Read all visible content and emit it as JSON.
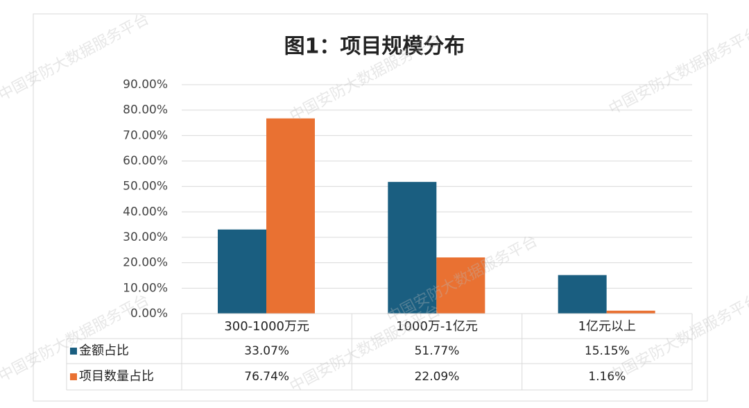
{
  "chart_data": {
    "type": "bar",
    "title": "图1：项目规模分布",
    "watermark": "中国安防大数据服务平台",
    "categories": [
      "300-1000万元",
      "1000万-1亿元",
      "1亿元以上"
    ],
    "series": [
      {
        "name": "金额占比",
        "color": "#1a5e80",
        "values": [
          33.07,
          51.77,
          15.15
        ],
        "value_labels": [
          "33.07%",
          "51.77%",
          "15.15%"
        ]
      },
      {
        "name": "项目数量占比",
        "color": "#e97132",
        "values": [
          76.74,
          22.09,
          1.16
        ],
        "value_labels": [
          "76.74%",
          "22.09%",
          "1.16%"
        ]
      }
    ],
    "ylim": [
      0,
      90
    ],
    "yticks": [
      {
        "value": 0,
        "label": "0.00%"
      },
      {
        "value": 10,
        "label": "10.00%"
      },
      {
        "value": 20,
        "label": "20.00%"
      },
      {
        "value": 30,
        "label": "30.00%"
      },
      {
        "value": 40,
        "label": "40.00%"
      },
      {
        "value": 50,
        "label": "50.00%"
      },
      {
        "value": 60,
        "label": "60.00%"
      },
      {
        "value": 70,
        "label": "70.00%"
      },
      {
        "value": 80,
        "label": "80.00%"
      },
      {
        "value": 90,
        "label": "90.00%"
      }
    ],
    "grid": true
  }
}
